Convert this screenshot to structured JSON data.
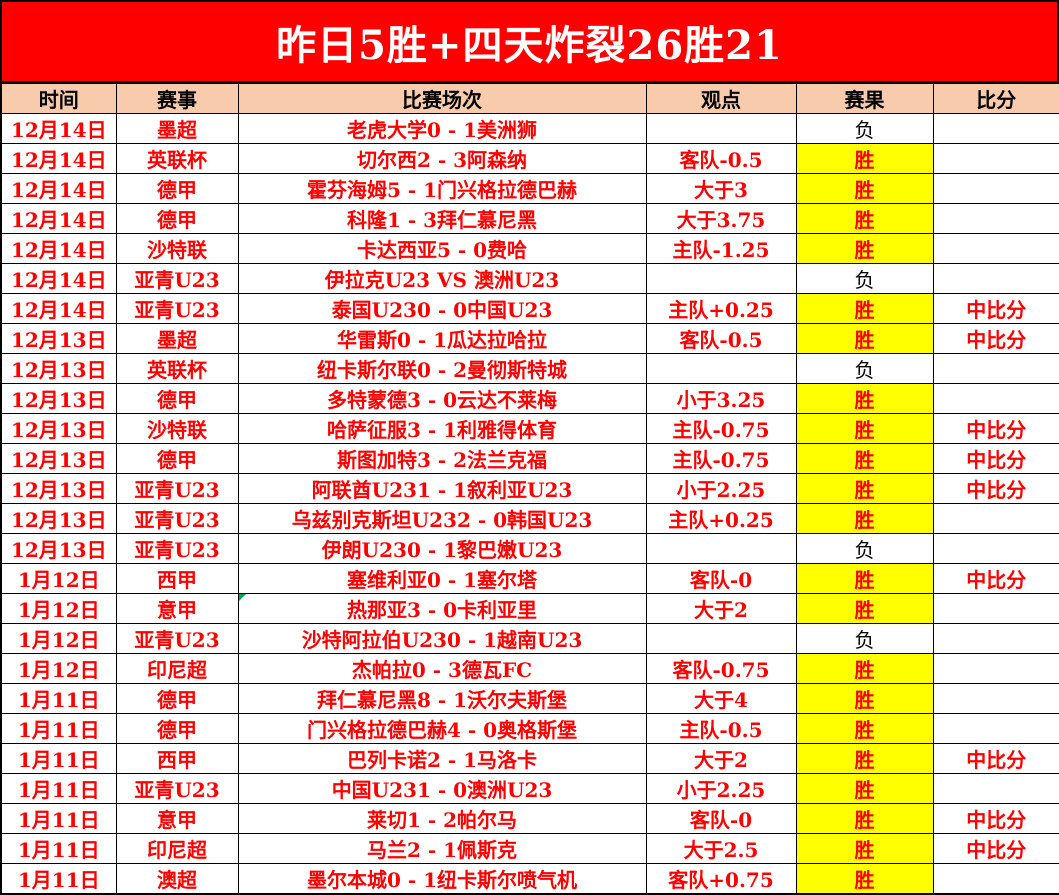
{
  "banner": {
    "title": "昨日5胜+四天炸裂26胜21"
  },
  "colors": {
    "banner_bg": "#FF0000",
    "banner_text": "#FFFFFF",
    "header_bg": "#F8CBAD",
    "win_bg": "#FFFF00",
    "red_text": "#FF0000",
    "loss_text": "#000000",
    "note_marker_green": "#00A550"
  },
  "table": {
    "columns": [
      "时间",
      "赛事",
      "比赛场次",
      "观点",
      "赛果",
      "比分"
    ],
    "rows": [
      {
        "date": "12月14日",
        "league": "墨超",
        "match": "老虎大学0 - 1美洲狮",
        "view": "",
        "result": "负",
        "result_style": "loss",
        "score": ""
      },
      {
        "date": "12月14日",
        "league": "英联杯",
        "match": "切尔西2 - 3阿森纳",
        "view": "客队-0.5",
        "result": "胜",
        "result_style": "win",
        "score": ""
      },
      {
        "date": "12月14日",
        "league": "德甲",
        "match": "霍芬海姆5 - 1门兴格拉德巴赫",
        "view": "大于3",
        "result": "胜",
        "result_style": "win",
        "score": ""
      },
      {
        "date": "12月14日",
        "league": "德甲",
        "match": "科隆1 - 3拜仁慕尼黑",
        "view": "大于3.75",
        "result": "胜",
        "result_style": "win",
        "score": ""
      },
      {
        "date": "12月14日",
        "league": "沙特联",
        "match": "卡达西亚5 - 0费哈",
        "view": "主队-1.25",
        "result": "胜",
        "result_style": "win",
        "score": ""
      },
      {
        "date": "12月14日",
        "league": "亚青U23",
        "match": "伊拉克U23 VS 澳洲U23",
        "view": "",
        "result": "负",
        "result_style": "loss",
        "score": ""
      },
      {
        "date": "12月14日",
        "league": "亚青U23",
        "match": "泰国U230 - 0中国U23",
        "view": "主队+0.25",
        "result": "胜",
        "result_style": "win",
        "score": "中比分"
      },
      {
        "date": "12月13日",
        "league": "墨超",
        "match": "华雷斯0 - 1瓜达拉哈拉",
        "view": "客队-0.5",
        "result": "胜",
        "result_style": "win",
        "score": "中比分"
      },
      {
        "date": "12月13日",
        "league": "英联杯",
        "match": "纽卡斯尔联0 - 2曼彻斯特城",
        "view": "",
        "result": "负",
        "result_style": "loss",
        "score": ""
      },
      {
        "date": "12月13日",
        "league": "德甲",
        "match": "多特蒙德3 - 0云达不莱梅",
        "view": "小于3.25",
        "result": "胜",
        "result_style": "win",
        "score": ""
      },
      {
        "date": "12月13日",
        "league": "沙特联",
        "match": "哈萨征服3 - 1利雅得体育",
        "view": "主队-0.75",
        "result": "胜",
        "result_style": "win",
        "score": "中比分"
      },
      {
        "date": "12月13日",
        "league": "德甲",
        "match": "斯图加特3 - 2法兰克福",
        "view": "主队-0.75",
        "result": "胜",
        "result_style": "win",
        "score": "中比分"
      },
      {
        "date": "12月13日",
        "league": "亚青U23",
        "match": "阿联酋U231 - 1叙利亚U23",
        "view": "小于2.25",
        "result": "胜",
        "result_style": "win",
        "score": "中比分"
      },
      {
        "date": "12月13日",
        "league": "亚青U23",
        "match": "乌兹别克斯坦U232 - 0韩国U23",
        "view": "主队+0.25",
        "result": "胜",
        "result_style": "win",
        "score": ""
      },
      {
        "date": "12月13日",
        "league": "亚青U23",
        "match": "伊朗U230 - 1黎巴嫩U23",
        "view": "",
        "result": "负",
        "result_style": "loss",
        "score": ""
      },
      {
        "date": "1月12日",
        "league": "西甲",
        "match": "塞维利亚0 - 1塞尔塔",
        "view": "客队-0",
        "result": "胜",
        "result_style": "win",
        "score": "中比分"
      },
      {
        "date": "1月12日",
        "league": "意甲",
        "match": "热那亚3 - 0卡利亚里",
        "view": "大于2",
        "result": "胜",
        "result_style": "win",
        "score": "",
        "note": true
      },
      {
        "date": "1月12日",
        "league": "亚青U23",
        "match": "沙特阿拉伯U230 - 1越南U23",
        "view": "",
        "result": "负",
        "result_style": "loss",
        "score": ""
      },
      {
        "date": "1月12日",
        "league": "印尼超",
        "match": "杰帕拉0 - 3德瓦FC",
        "view": "客队-0.75",
        "result": "胜",
        "result_style": "win",
        "score": ""
      },
      {
        "date": "1月11日",
        "league": "德甲",
        "match": "拜仁慕尼黑8 - 1沃尔夫斯堡",
        "view": "大于4",
        "result": "胜",
        "result_style": "win",
        "score": ""
      },
      {
        "date": "1月11日",
        "league": "德甲",
        "match": "门兴格拉德巴赫4 - 0奥格斯堡",
        "view": "主队-0.5",
        "result": "胜",
        "result_style": "win",
        "score": ""
      },
      {
        "date": "1月11日",
        "league": "西甲",
        "match": "巴列卡诺2 - 1马洛卡",
        "view": "大于2",
        "result": "胜",
        "result_style": "win",
        "score": "中比分"
      },
      {
        "date": "1月11日",
        "league": "亚青U23",
        "match": "中国U231 - 0澳洲U23",
        "view": "小于2.25",
        "result": "胜",
        "result_style": "win",
        "score": ""
      },
      {
        "date": "1月11日",
        "league": "意甲",
        "match": "莱切1 - 2帕尔马",
        "view": "客队-0",
        "result": "胜",
        "result_style": "win",
        "score": "中比分"
      },
      {
        "date": "1月11日",
        "league": "印尼超",
        "match": "马兰2 - 1佩斯克",
        "view": "大于2.5",
        "result": "胜",
        "result_style": "win",
        "score": "中比分"
      },
      {
        "date": "1月11日",
        "league": "澳超",
        "match": "墨尔本城0 - 1纽卡斯尔喷气机",
        "view": "客队+0.75",
        "result": "胜",
        "result_style": "win",
        "score": ""
      }
    ]
  }
}
